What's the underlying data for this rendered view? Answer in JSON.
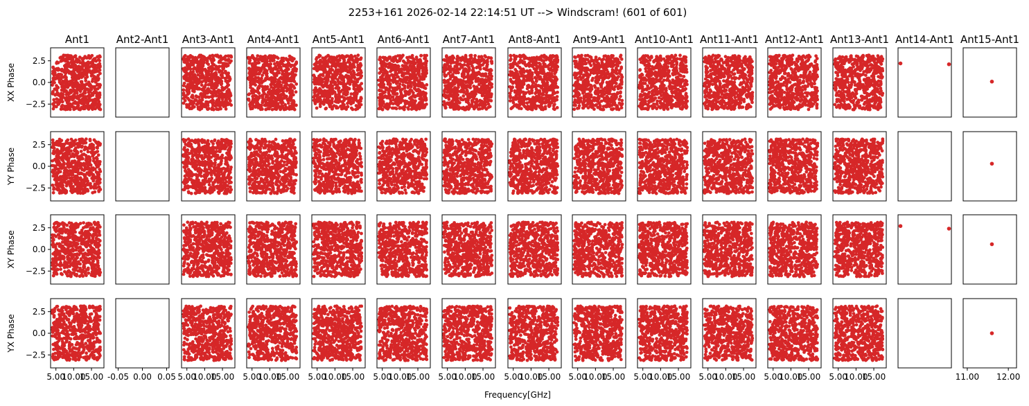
{
  "figure": {
    "suptitle": "2253+161 2026-02-14 22:14:51 UT --> Windscram! (601 of 601)",
    "xlabel": "Frequency[GHz]"
  },
  "chart_data": {
    "type": "scatter",
    "title": "2253+161 2026-02-14 22:14:51 UT --> Windscram! (601 of 601)",
    "xlabel": "Frequency[GHz]",
    "marker_color": "#d62728",
    "grid": false,
    "columns": [
      "Ant1",
      "Ant2-Ant1",
      "Ant3-Ant1",
      "Ant4-Ant1",
      "Ant5-Ant1",
      "Ant6-Ant1",
      "Ant7-Ant1",
      "Ant8-Ant1",
      "Ant9-Ant1",
      "Ant10-Ant1",
      "Ant11-Ant1",
      "Ant12-Ant1",
      "Ant13-Ant1",
      "Ant14-Ant1",
      "Ant15-Ant1"
    ],
    "rows": [
      "XX Phase",
      "YY Phase",
      "XY Phase",
      "YX Phase"
    ],
    "ylim": [
      -4,
      4
    ],
    "yticks": [
      2.5,
      0.0,
      -2.5
    ],
    "ytick_labels": [
      "2.5",
      "0.0",
      "−2.5"
    ],
    "xlim_default": [
      3.5,
      18.5
    ],
    "xticks_default": [
      5.0,
      10.0,
      15.0
    ],
    "xtick_labels_default": [
      "5.00",
      "10.00",
      "15.00"
    ],
    "column_overrides": {
      "1": {
        "xlim": [
          -0.055,
          0.055
        ],
        "xticks": [
          -0.05,
          0.0,
          0.05
        ],
        "xtick_labels": [
          "-0.05",
          "0.00",
          "0.05"
        ]
      },
      "13": {
        "xlim": [
          -0.055,
          0.055
        ]
      },
      "14": {
        "xlim": [
          10.9,
          12.2
        ],
        "xticks": [
          11.0,
          12.0
        ],
        "xtick_labels": [
          "11.00",
          "12.00"
        ]
      }
    },
    "scatter_fill": {
      "x_range_ghz": [
        4.0,
        17.5
      ],
      "phase_range_rad": [
        -3.14,
        3.14
      ],
      "points_per_panel": 600,
      "filled_columns": [
        0,
        2,
        3,
        4,
        5,
        6,
        7,
        8,
        9,
        10,
        11,
        12
      ],
      "empty_columns": [
        1
      ]
    },
    "sparse_points": [
      {
        "row": 0,
        "col": 13,
        "x": -0.05,
        "y": 2.2
      },
      {
        "row": 0,
        "col": 13,
        "x": 0.05,
        "y": 2.1
      },
      {
        "row": 2,
        "col": 13,
        "x": -0.05,
        "y": 2.7
      },
      {
        "row": 2,
        "col": 13,
        "x": 0.05,
        "y": 2.4
      },
      {
        "row": 0,
        "col": 14,
        "x": 11.6,
        "y": 0.1
      },
      {
        "row": 1,
        "col": 14,
        "x": 11.6,
        "y": 0.3
      },
      {
        "row": 2,
        "col": 14,
        "x": 11.6,
        "y": 0.6
      },
      {
        "row": 3,
        "col": 14,
        "x": 11.6,
        "y": 0.0
      }
    ]
  }
}
